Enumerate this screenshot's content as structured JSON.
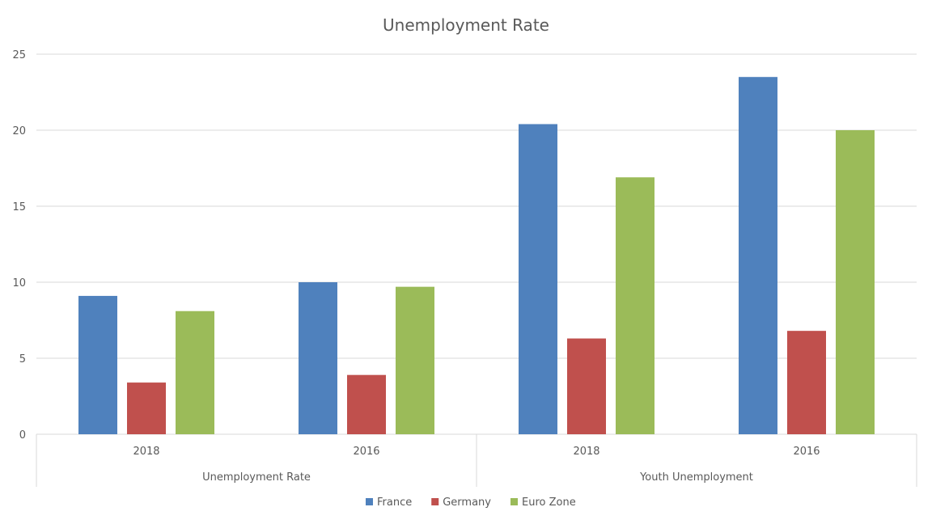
{
  "chart_data": {
    "type": "bar",
    "title": "Unemployment Rate",
    "xlabel": "",
    "ylabel": "",
    "ylim": [
      0,
      25
    ],
    "y_ticks": [
      0,
      5,
      10,
      15,
      20,
      25
    ],
    "grid": true,
    "legend_position": "bottom",
    "groups": [
      {
        "label": "Unemployment Rate",
        "categories": [
          "2018",
          "2016"
        ]
      },
      {
        "label": "Youth Unemployment",
        "categories": [
          "2018",
          "2016"
        ]
      }
    ],
    "categories": [
      "2018",
      "2016",
      "2018",
      "2016"
    ],
    "series": [
      {
        "name": "France",
        "color": "#4f81bd",
        "values": [
          9.1,
          10.0,
          20.4,
          23.5
        ]
      },
      {
        "name": "Germany",
        "color": "#c0504d",
        "values": [
          3.4,
          3.9,
          6.3,
          6.8
        ]
      },
      {
        "name": "Euro Zone",
        "color": "#9bbb59",
        "values": [
          8.1,
          9.7,
          16.9,
          20.0
        ]
      }
    ]
  }
}
